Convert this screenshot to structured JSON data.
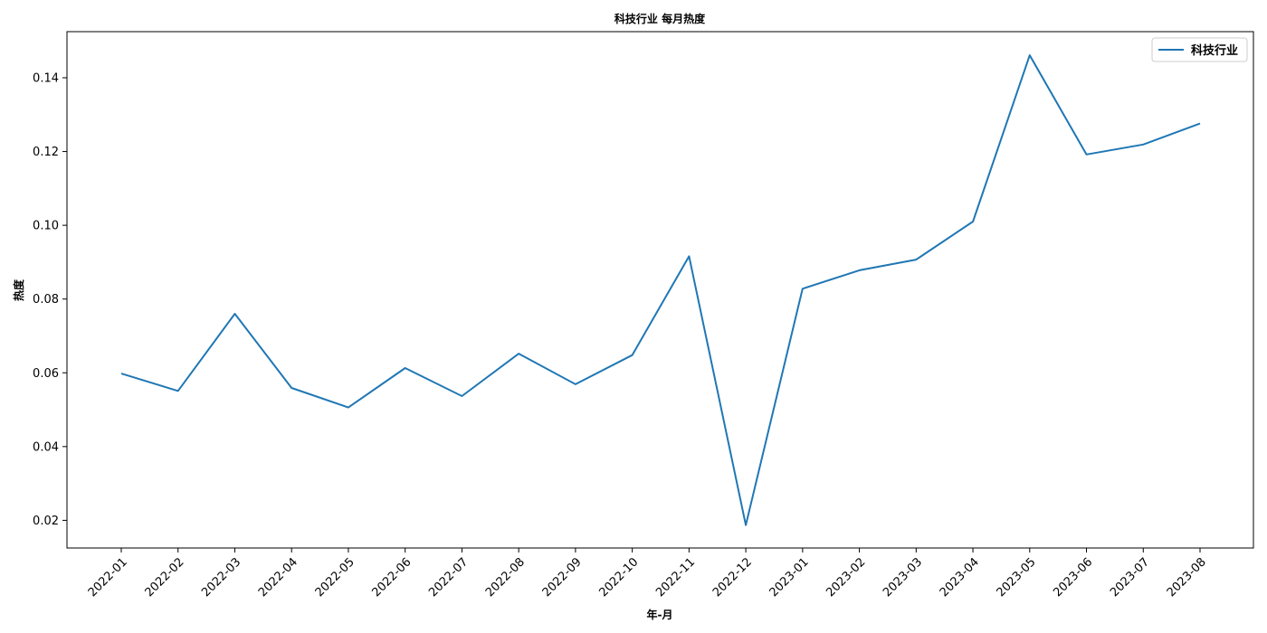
{
  "chart_data": {
    "type": "line",
    "title": "科技行业 每月热度",
    "xlabel": "年-月",
    "ylabel": "热度",
    "ylim": [
      0.0125,
      0.1525
    ],
    "yticks": [
      0.02,
      0.04,
      0.06,
      0.08,
      0.1,
      0.12,
      0.14
    ],
    "ytick_labels": [
      "0.02",
      "0.04",
      "0.06",
      "0.08",
      "0.10",
      "0.12",
      "0.14"
    ],
    "grid": false,
    "legend": "top-right",
    "categories": [
      "2022-01",
      "2022-02",
      "2022-03",
      "2022-04",
      "2022-05",
      "2022-06",
      "2022-07",
      "2022-08",
      "2022-09",
      "2022-10",
      "2022-11",
      "2022-12",
      "2023-01",
      "2023-02",
      "2023-03",
      "2023-04",
      "2023-05",
      "2023-06",
      "2023-07",
      "2023-08"
    ],
    "series": [
      {
        "name": "科技行业",
        "color": "#1f77b4",
        "values": [
          0.0598,
          0.0551,
          0.076,
          0.0559,
          0.0506,
          0.0613,
          0.0537,
          0.0652,
          0.0569,
          0.0648,
          0.0916,
          0.0187,
          0.0828,
          0.0878,
          0.0907,
          0.101,
          0.1461,
          0.1192,
          0.1219,
          0.1276
        ]
      }
    ]
  }
}
